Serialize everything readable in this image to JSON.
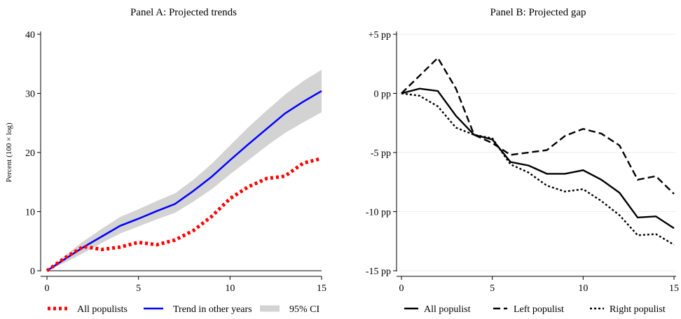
{
  "chart_data": [
    {
      "type": "line",
      "title": "Panel A: Projected trends",
      "xlabel": "",
      "ylabel": "Percent (100 × log)",
      "xlim": [
        0,
        15
      ],
      "ylim": [
        0,
        40
      ],
      "xticks": [
        "0",
        "5",
        "10",
        "15"
      ],
      "yticks": [
        "0",
        "10",
        "20",
        "30",
        "40"
      ],
      "x": [
        0,
        1,
        2,
        3,
        4,
        5,
        6,
        7,
        8,
        9,
        10,
        11,
        12,
        13,
        14,
        15
      ],
      "series": [
        {
          "name": "All populists",
          "values": [
            0,
            2.2,
            4.1,
            3.6,
            4.0,
            4.8,
            4.4,
            5.2,
            6.8,
            9.2,
            12.2,
            14.2,
            15.6,
            16.0,
            18.2,
            19.0
          ],
          "color": "#ff0000",
          "style": "dotted"
        },
        {
          "name": "Trend in other years",
          "values": [
            0,
            2.0,
            4.0,
            5.8,
            7.6,
            8.8,
            10.1,
            11.3,
            13.5,
            15.9,
            18.7,
            21.4,
            24.0,
            26.6,
            28.6,
            30.4
          ],
          "color": "#0000ff",
          "style": "solid"
        }
      ],
      "band": {
        "name": "95% CI",
        "lower": [
          0,
          1.4,
          3.0,
          4.7,
          6.3,
          7.5,
          8.7,
          9.8,
          11.7,
          13.8,
          16.3,
          18.7,
          21.1,
          23.3,
          25.1,
          26.8
        ],
        "upper": [
          0,
          2.6,
          5.0,
          7.1,
          9.1,
          10.4,
          11.8,
          13.1,
          15.4,
          18.1,
          21.2,
          24.3,
          27.1,
          29.8,
          32.1,
          34.0
        ],
        "color": "#d3d3d3"
      },
      "legend": [
        "All populists",
        "Trend in other years",
        "95% CI"
      ],
      "legend_position": "bottom",
      "grid": false
    },
    {
      "type": "line",
      "title": "Panel B: Projected gap",
      "xlabel": "",
      "ylabel": "",
      "xlim": [
        0,
        15
      ],
      "ylim": [
        -15,
        5
      ],
      "xticks": [
        "0",
        "5",
        "10",
        "15"
      ],
      "yticks": [
        "+5 pp",
        "0 pp",
        "-5 pp",
        "-10 pp",
        "-15 pp"
      ],
      "x": [
        0,
        1,
        2,
        3,
        4,
        5,
        6,
        7,
        8,
        9,
        10,
        11,
        12,
        13,
        14,
        15
      ],
      "series": [
        {
          "name": "All populist",
          "values": [
            0,
            0.4,
            0.2,
            -1.9,
            -3.5,
            -3.9,
            -5.8,
            -6.1,
            -6.8,
            -6.8,
            -6.5,
            -7.3,
            -8.4,
            -10.5,
            -10.4,
            -11.4
          ],
          "color": "#000000",
          "style": "solid"
        },
        {
          "name": "Left populist",
          "values": [
            0,
            1.5,
            3.0,
            0.4,
            -3.5,
            -4.2,
            -5.2,
            -5.0,
            -4.8,
            -3.6,
            -3.0,
            -3.4,
            -4.4,
            -7.3,
            -7.0,
            -8.5
          ],
          "color": "#000000",
          "style": "dashed"
        },
        {
          "name": "Right populist",
          "values": [
            0,
            -0.2,
            -1.1,
            -2.9,
            -3.5,
            -3.8,
            -6.0,
            -6.7,
            -7.8,
            -8.3,
            -8.1,
            -9.1,
            -10.3,
            -12.0,
            -11.9,
            -12.8
          ],
          "color": "#000000",
          "style": "dotted"
        }
      ],
      "legend": [
        "All populist",
        "Left populist",
        "Right populist"
      ],
      "legend_position": "bottom",
      "grid": true
    }
  ]
}
